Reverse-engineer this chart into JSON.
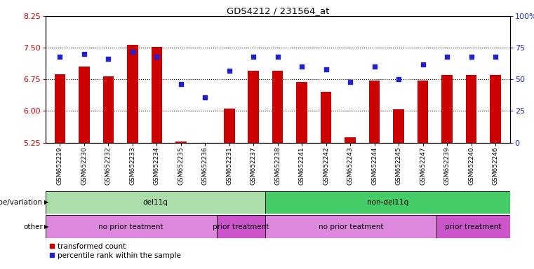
{
  "title": "GDS4212 / 231564_at",
  "samples": [
    "GSM652229",
    "GSM652230",
    "GSM652232",
    "GSM652233",
    "GSM652234",
    "GSM652235",
    "GSM652236",
    "GSM652231",
    "GSM652237",
    "GSM652238",
    "GSM652241",
    "GSM652242",
    "GSM652243",
    "GSM652244",
    "GSM652245",
    "GSM652247",
    "GSM652239",
    "GSM652240",
    "GSM652246"
  ],
  "transformed_count": [
    6.87,
    7.05,
    6.82,
    7.57,
    7.52,
    5.28,
    5.19,
    6.06,
    6.96,
    6.96,
    6.68,
    6.45,
    5.38,
    6.72,
    6.04,
    6.72,
    6.85,
    6.85,
    6.85
  ],
  "percentile_rank": [
    68,
    70,
    66,
    72,
    68,
    46,
    36,
    57,
    68,
    68,
    60,
    58,
    48,
    60,
    50,
    62,
    68,
    68,
    68
  ],
  "ylim_left": [
    5.25,
    8.25
  ],
  "ylim_right": [
    0,
    100
  ],
  "yticks_left": [
    5.25,
    6.0,
    6.75,
    7.5,
    8.25
  ],
  "yticks_right": [
    0,
    25,
    50,
    75,
    100
  ],
  "bar_color": "#cc0000",
  "dot_color": "#2222cc",
  "bar_bottom": 5.25,
  "genotype_groups": [
    {
      "label": "del11q",
      "start": 0,
      "end": 9,
      "color": "#aaddaa"
    },
    {
      "label": "non-del11q",
      "start": 9,
      "end": 19,
      "color": "#44cc66"
    }
  ],
  "other_groups": [
    {
      "label": "no prior teatment",
      "start": 0,
      "end": 7,
      "color": "#dd88dd"
    },
    {
      "label": "prior treatment",
      "start": 7,
      "end": 9,
      "color": "#cc55cc"
    },
    {
      "label": "no prior teatment",
      "start": 9,
      "end": 16,
      "color": "#dd88dd"
    },
    {
      "label": "prior treatment",
      "start": 16,
      "end": 19,
      "color": "#cc55cc"
    }
  ],
  "legend_items": [
    {
      "label": "transformed count",
      "color": "#cc0000",
      "marker": "s"
    },
    {
      "label": "percentile rank within the sample",
      "color": "#2222cc",
      "marker": "s"
    }
  ],
  "left_label_color": "#cc0000",
  "right_label_color": "#2222cc",
  "annotation_row1_label": "genotype/variation",
  "annotation_row2_label": "other"
}
